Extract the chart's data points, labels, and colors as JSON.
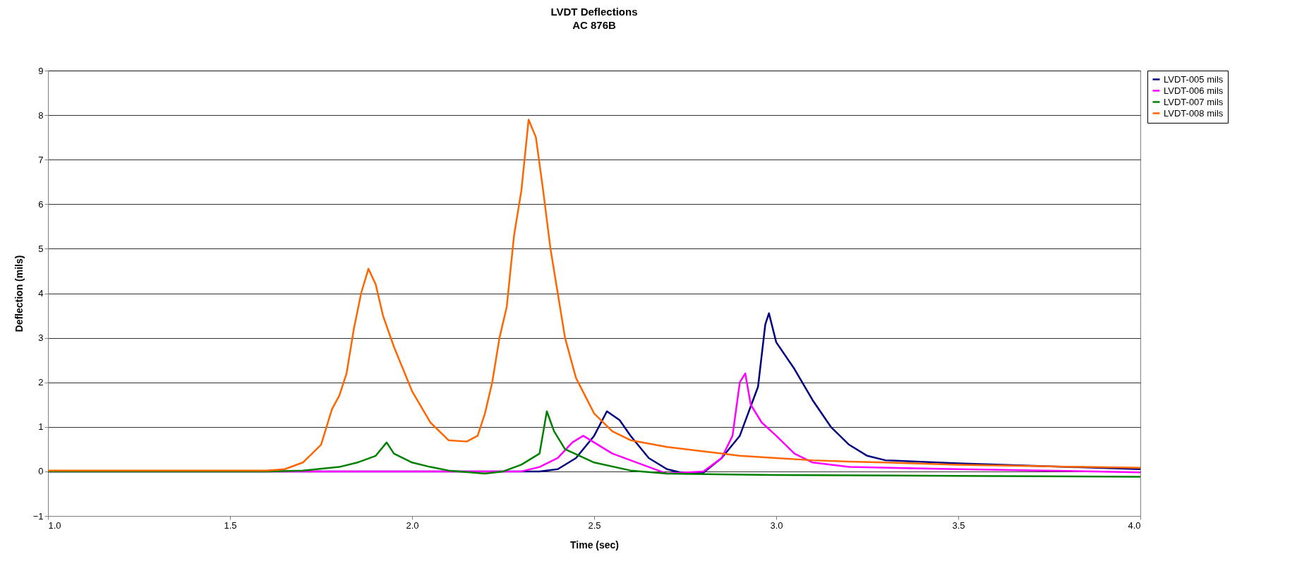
{
  "chart_data": {
    "type": "line",
    "title": "LVDT Deflections",
    "subtitle": "AC 876B",
    "xlabel": "Time (sec)",
    "ylabel": "Deflection (mils)",
    "xlim": [
      1,
      4
    ],
    "ylim": [
      -1,
      9
    ],
    "xticks": [
      {
        "value": 1,
        "label": "1.0"
      },
      {
        "value": 1.5,
        "label": "1.5"
      },
      {
        "value": 2,
        "label": "2.0"
      },
      {
        "value": 2.5,
        "label": "2.5"
      },
      {
        "value": 3,
        "label": "3.0"
      },
      {
        "value": 3.5,
        "label": "3.5"
      },
      {
        "value": 4,
        "label": "4.0"
      }
    ],
    "yticks": [
      -1,
      0,
      1,
      2,
      3,
      4,
      5,
      6,
      7,
      8,
      9
    ],
    "grid": "y",
    "legend": "right",
    "series": [
      {
        "name": "LVDT-005 mils",
        "color": "#000080",
        "x": [
          1,
          1.5,
          2,
          2.35,
          2.4,
          2.45,
          2.5,
          2.535,
          2.57,
          2.6,
          2.65,
          2.7,
          2.75,
          2.8,
          2.85,
          2.9,
          2.95,
          2.97,
          2.98,
          3,
          3.05,
          3.1,
          3.15,
          3.2,
          3.25,
          3.3,
          3.5,
          4
        ],
        "values": [
          0,
          0,
          0,
          0,
          0.05,
          0.3,
          0.8,
          1.35,
          1.15,
          0.8,
          0.3,
          0.05,
          -0.05,
          -0.03,
          0.3,
          0.8,
          1.9,
          3.3,
          3.55,
          2.9,
          2.3,
          1.6,
          1,
          0.6,
          0.35,
          0.25,
          0.18,
          0.05
        ]
      },
      {
        "name": "LVDT-006 mils",
        "color": "#ff00ff",
        "x": [
          1,
          1.5,
          2,
          2.3,
          2.35,
          2.4,
          2.44,
          2.47,
          2.5,
          2.55,
          2.6,
          2.65,
          2.7,
          2.8,
          2.85,
          2.88,
          2.9,
          2.915,
          2.93,
          2.96,
          3,
          3.05,
          3.1,
          3.2,
          3.5,
          4
        ],
        "values": [
          0,
          0,
          0,
          0,
          0.1,
          0.3,
          0.65,
          0.8,
          0.65,
          0.4,
          0.25,
          0.1,
          -0.05,
          0,
          0.3,
          0.8,
          2,
          2.2,
          1.5,
          1.1,
          0.8,
          0.4,
          0.2,
          0.1,
          0.05,
          -0.02
        ]
      },
      {
        "name": "LVDT-007 mils",
        "color": "#008000",
        "x": [
          1,
          1.6,
          1.7,
          1.8,
          1.85,
          1.9,
          1.93,
          1.95,
          2,
          2.05,
          2.1,
          2.2,
          2.25,
          2.3,
          2.35,
          2.37,
          2.39,
          2.42,
          2.5,
          2.6,
          2.7,
          3,
          3.5,
          4
        ],
        "values": [
          0,
          0,
          0.02,
          0.1,
          0.2,
          0.35,
          0.65,
          0.4,
          0.2,
          0.1,
          0.02,
          -0.05,
          0,
          0.15,
          0.4,
          1.35,
          0.9,
          0.5,
          0.2,
          0.02,
          -0.05,
          -0.08,
          -0.1,
          -0.12
        ]
      },
      {
        "name": "LVDT-008 mils",
        "color": "#ff6600",
        "x": [
          1,
          1.6,
          1.65,
          1.7,
          1.75,
          1.78,
          1.8,
          1.82,
          1.84,
          1.86,
          1.88,
          1.9,
          1.92,
          1.95,
          2,
          2.05,
          2.1,
          2.15,
          2.18,
          2.2,
          2.22,
          2.24,
          2.26,
          2.28,
          2.3,
          2.32,
          2.34,
          2.36,
          2.38,
          2.4,
          2.42,
          2.45,
          2.5,
          2.55,
          2.6,
          2.7,
          2.8,
          2.9,
          3,
          3.1,
          3.2,
          3.3,
          3.5,
          3.7,
          4
        ],
        "values": [
          0.02,
          0.02,
          0.05,
          0.2,
          0.6,
          1.4,
          1.7,
          2.2,
          3.2,
          4,
          4.55,
          4.2,
          3.5,
          2.8,
          1.8,
          1.1,
          0.7,
          0.67,
          0.8,
          1.3,
          2,
          3,
          3.7,
          5.3,
          6.3,
          7.9,
          7.5,
          6.3,
          5,
          4,
          3,
          2.1,
          1.3,
          0.9,
          0.7,
          0.55,
          0.45,
          0.35,
          0.3,
          0.25,
          0.22,
          0.2,
          0.15,
          0.12,
          0.08
        ]
      }
    ]
  }
}
